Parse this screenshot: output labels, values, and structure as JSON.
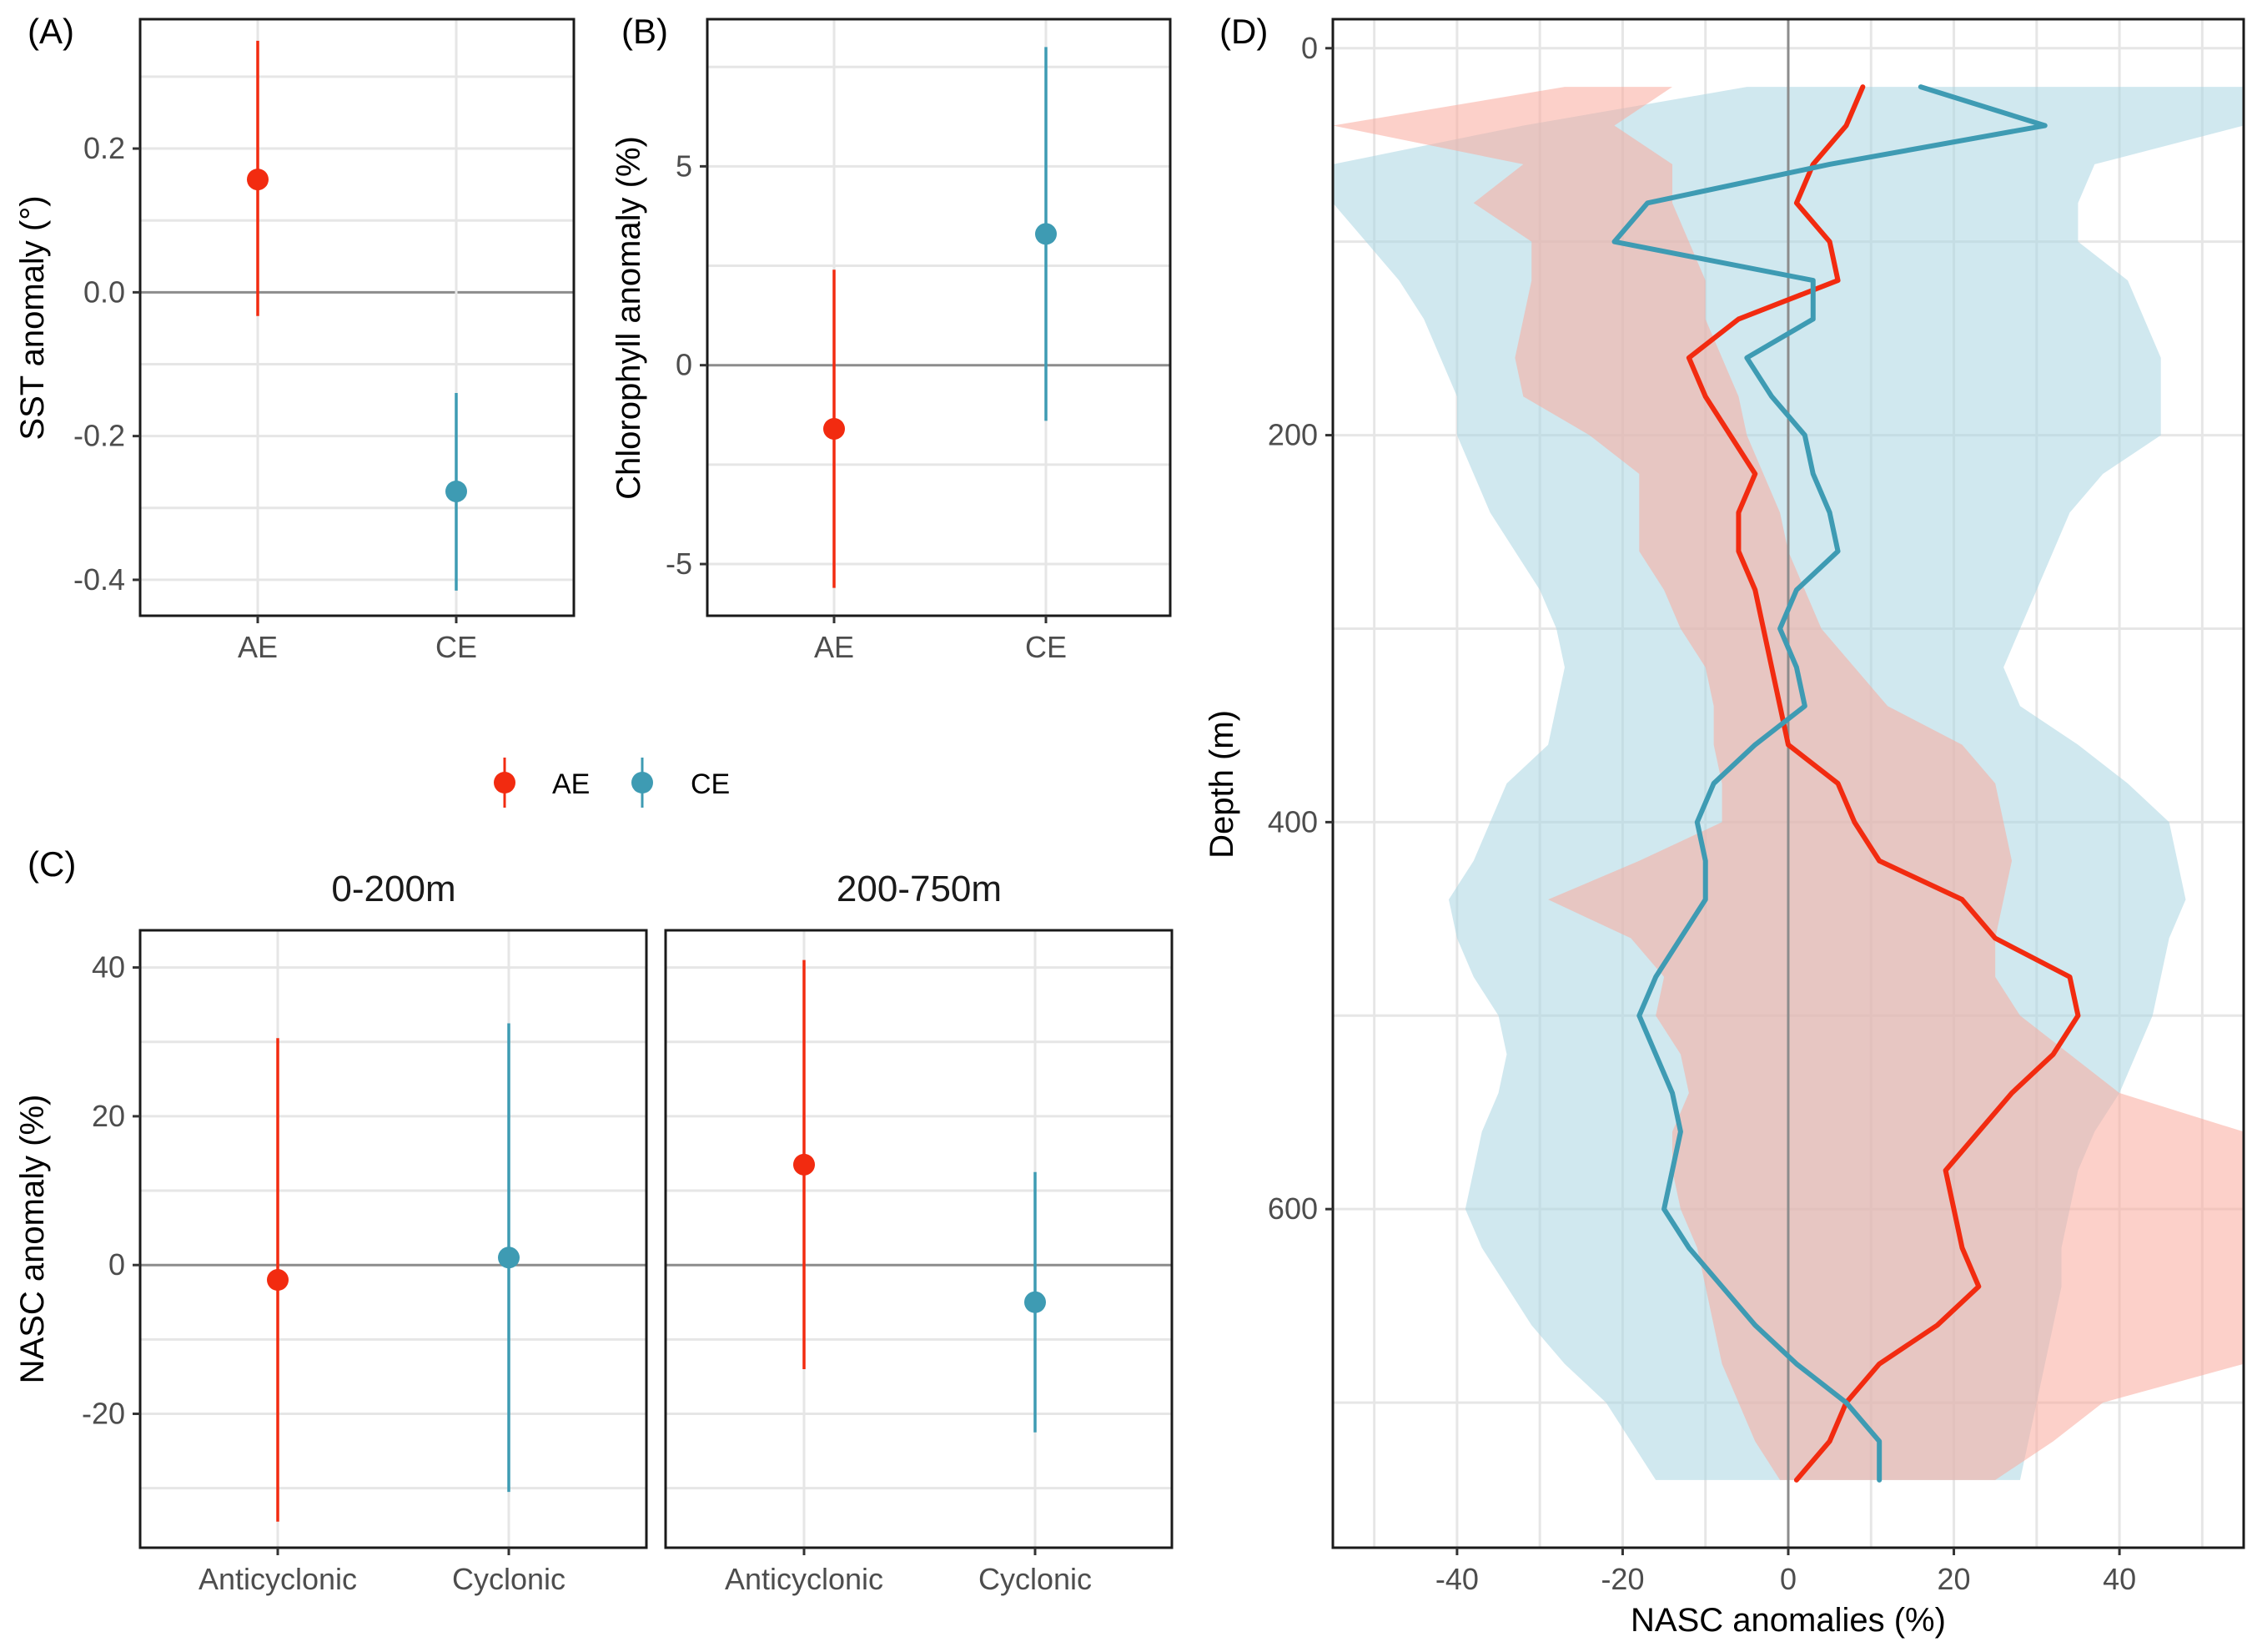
{
  "colors": {
    "AE": "#f22b10",
    "CE": "#3e9bb3",
    "AE_band": "#f9a99c",
    "CE_band": "#a9d5e1",
    "overlap": "#d2c1c1",
    "zero": "#8c8c8c",
    "grid": "#e6e6e6"
  },
  "legend": {
    "entries": [
      "AE",
      "CE"
    ]
  },
  "chart_data": [
    {
      "panel": "(A)",
      "type": "pointrange",
      "ylabel": "SST anomaly (°)",
      "xlabel": "",
      "categories": [
        "AE",
        "CE"
      ],
      "yticks": [
        "-0.4",
        "-0.2",
        "0.0",
        "0.2"
      ],
      "ylim": [
        -0.45,
        0.38
      ],
      "points": [
        {
          "name": "AE",
          "category": "AE",
          "value": 0.157,
          "lower": -0.033,
          "upper": 0.35
        },
        {
          "name": "CE",
          "category": "CE",
          "value": -0.277,
          "lower": -0.415,
          "upper": -0.14
        }
      ]
    },
    {
      "panel": "(B)",
      "type": "pointrange",
      "ylabel": "Chlorophyll anomaly (%)",
      "xlabel": "",
      "categories": [
        "AE",
        "CE"
      ],
      "yticks": [
        "-5",
        "0",
        "5"
      ],
      "ylim": [
        -6.3,
        8.7
      ],
      "points": [
        {
          "name": "AE",
          "category": "AE",
          "value": -1.6,
          "lower": -5.6,
          "upper": 2.4
        },
        {
          "name": "CE",
          "category": "CE",
          "value": 3.3,
          "lower": -1.4,
          "upper": 8.0
        }
      ]
    },
    {
      "panel": "(C)",
      "type": "pointrange",
      "ylabel": "NASC anomaly (%)",
      "xlabel": "",
      "facets": [
        "0-200m",
        "200-750m"
      ],
      "categories": [
        "Anticyclonic",
        "Cyclonic"
      ],
      "yticks": [
        "-20",
        "0",
        "20",
        "40"
      ],
      "ylim": [
        -38,
        45
      ],
      "points": [
        {
          "facet": "0-200m",
          "category": "Anticyclonic",
          "name": "AE",
          "value": -2.0,
          "lower": -34.5,
          "upper": 30.5
        },
        {
          "facet": "0-200m",
          "category": "Cyclonic",
          "name": "CE",
          "value": 1.0,
          "lower": -30.5,
          "upper": 32.5
        },
        {
          "facet": "200-750m",
          "category": "Anticyclonic",
          "name": "AE",
          "value": 13.5,
          "lower": -14.0,
          "upper": 41.0
        },
        {
          "facet": "200-750m",
          "category": "Cyclonic",
          "name": "CE",
          "value": -5.0,
          "lower": -22.5,
          "upper": 12.5
        }
      ]
    },
    {
      "panel": "(D)",
      "type": "line",
      "xlabel": "NASC anomalies (%)",
      "ylabel": "Depth (m)",
      "xticks": [
        "-40",
        "-20",
        "0",
        "20",
        "40"
      ],
      "yticks": [
        "0",
        "200",
        "400",
        "600"
      ],
      "xlim": [
        -55,
        55
      ],
      "ylim": [
        775,
        -15
      ],
      "series": [
        {
          "name": "AE",
          "depth": [
            20,
            40,
            60,
            80,
            100,
            120,
            140,
            160,
            180,
            200,
            220,
            240,
            260,
            280,
            300,
            320,
            340,
            360,
            380,
            400,
            420,
            440,
            460,
            480,
            500,
            520,
            540,
            560,
            580,
            600,
            620,
            640,
            660,
            680,
            700,
            720,
            740
          ],
          "values": [
            9,
            7,
            3,
            1,
            5,
            6,
            -6,
            -12,
            -10,
            -7,
            -4,
            -6,
            -6,
            -4,
            -3,
            -2,
            -1,
            0,
            6,
            8,
            11,
            21,
            25,
            34,
            35,
            32,
            27,
            23,
            19,
            20,
            21,
            23,
            18,
            11,
            7,
            5,
            1
          ],
          "lower": [
            -27,
            -55,
            -32,
            -38,
            -31,
            -31,
            -32,
            -33,
            -32,
            -24,
            -18,
            -18,
            -18,
            -15,
            -13,
            -10,
            -9,
            -9,
            -8,
            -8,
            -18,
            -29,
            -19,
            -15,
            -16,
            -13,
            -12,
            -14,
            -14,
            -13,
            -11,
            -10,
            -9,
            -8,
            -6,
            -4,
            -1
          ],
          "upper": [
            -14,
            -21,
            -14,
            -14,
            -12,
            -10,
            -10,
            -8,
            -6,
            -5,
            -3,
            -1,
            0,
            2,
            4,
            8,
            12,
            21,
            25,
            26,
            27,
            26,
            25,
            25,
            28,
            34,
            40,
            55,
            55,
            55,
            55,
            55,
            55,
            55,
            38,
            32,
            25
          ]
        },
        {
          "name": "CE",
          "depth": [
            20,
            40,
            60,
            80,
            100,
            120,
            140,
            160,
            180,
            200,
            220,
            240,
            260,
            280,
            300,
            320,
            340,
            360,
            380,
            400,
            420,
            440,
            460,
            480,
            500,
            520,
            540,
            560,
            580,
            600,
            620,
            640,
            660,
            680,
            700,
            720,
            740
          ],
          "values": [
            16,
            31,
            5,
            -17,
            -21,
            3,
            3,
            -5,
            -2,
            2,
            3,
            5,
            6,
            1,
            -1,
            1,
            2,
            -4,
            -9,
            -11,
            -10,
            -10,
            -13,
            -16,
            -18,
            -16,
            -14,
            -13,
            -14,
            -15,
            -12,
            -8,
            -4,
            1,
            7,
            11,
            11
          ],
          "lower": [
            -5,
            -32,
            -55,
            -55,
            -51,
            -47,
            -44,
            -42,
            -40,
            -40,
            -38,
            -36,
            -33,
            -30,
            -28,
            -27,
            -28,
            -29,
            -34,
            -36,
            -38,
            -41,
            -40,
            -38,
            -35,
            -34,
            -35,
            -37,
            -38,
            -39,
            -37,
            -34,
            -31,
            -27,
            -22,
            -19,
            -16
          ],
          "upper": [
            55,
            55,
            37,
            35,
            35,
            41,
            43,
            45,
            45,
            45,
            38,
            34,
            32,
            30,
            28,
            26,
            28,
            35,
            41,
            46,
            47,
            48,
            46,
            45,
            44,
            42,
            40,
            37,
            35,
            34,
            33,
            33,
            32,
            31,
            30,
            29,
            28
          ]
        }
      ]
    }
  ]
}
